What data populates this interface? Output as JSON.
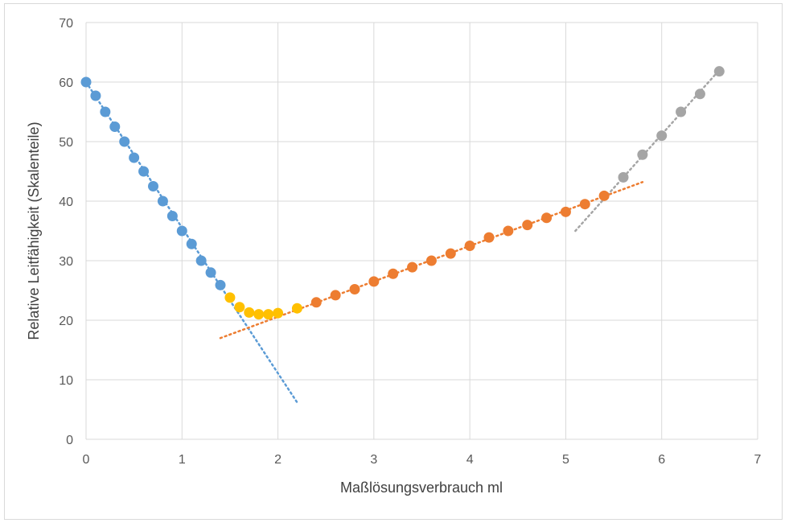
{
  "chart_data": {
    "type": "scatter",
    "title": "",
    "xlabel": "Maßlösungsverbrauch ml",
    "ylabel": "Relative Leitfähigkeit (Skalenteile)",
    "xlim": [
      0,
      7
    ],
    "ylim": [
      0,
      70
    ],
    "x_ticks": [
      "0",
      "1",
      "2",
      "3",
      "4",
      "5",
      "6",
      "7"
    ],
    "y_ticks": [
      "0",
      "10",
      "20",
      "30",
      "40",
      "50",
      "60",
      "70"
    ],
    "x_tick_values": [
      0,
      1,
      2,
      3,
      4,
      5,
      6,
      7
    ],
    "y_tick_values": [
      0,
      10,
      20,
      30,
      40,
      50,
      60,
      70
    ],
    "grid": true,
    "legend": "none",
    "series": [
      {
        "color": "#5b9bd5",
        "points": [
          [
            0,
            60
          ],
          [
            0.1,
            57.7
          ],
          [
            0.2,
            55
          ],
          [
            0.3,
            52.5
          ],
          [
            0.4,
            50
          ],
          [
            0.5,
            47.3
          ],
          [
            0.6,
            45
          ],
          [
            0.7,
            42.5
          ],
          [
            0.8,
            40
          ],
          [
            0.9,
            37.5
          ],
          [
            1.0,
            35
          ],
          [
            1.1,
            32.8
          ],
          [
            1.2,
            30
          ],
          [
            1.3,
            28
          ],
          [
            1.4,
            25.9
          ]
        ],
        "trendline": {
          "color": "#5b9bd5",
          "from": [
            0,
            60
          ],
          "to": [
            2.2,
            6.2
          ]
        }
      },
      {
        "color": "#ffc000",
        "points": [
          [
            1.5,
            23.8
          ],
          [
            1.6,
            22.2
          ],
          [
            1.7,
            21.3
          ],
          [
            1.8,
            21
          ],
          [
            1.9,
            21
          ],
          [
            2.0,
            21.2
          ],
          [
            2.2,
            22
          ]
        ]
      },
      {
        "color": "#ed7d31",
        "points": [
          [
            2.4,
            23
          ],
          [
            2.6,
            24.2
          ],
          [
            2.8,
            25.2
          ],
          [
            3.0,
            26.5
          ],
          [
            3.2,
            27.8
          ],
          [
            3.4,
            28.9
          ],
          [
            3.6,
            30
          ],
          [
            3.8,
            31.2
          ],
          [
            4.0,
            32.5
          ],
          [
            4.2,
            33.9
          ],
          [
            4.4,
            35
          ],
          [
            4.6,
            36
          ],
          [
            4.8,
            37.2
          ],
          [
            5.0,
            38.2
          ],
          [
            5.2,
            39.5
          ],
          [
            5.4,
            40.9
          ]
        ],
        "trendline": {
          "color": "#ed7d31",
          "from": [
            1.4,
            17
          ],
          "to": [
            5.8,
            43.2
          ]
        }
      },
      {
        "color": "#a5a5a5",
        "points": [
          [
            5.6,
            44
          ],
          [
            5.8,
            47.8
          ],
          [
            6.0,
            51
          ],
          [
            6.2,
            55
          ],
          [
            6.4,
            58
          ],
          [
            6.6,
            61.8
          ]
        ],
        "trendline": {
          "color": "#a5a5a5",
          "from": [
            5.1,
            35
          ],
          "to": [
            6.6,
            62
          ]
        }
      }
    ]
  }
}
